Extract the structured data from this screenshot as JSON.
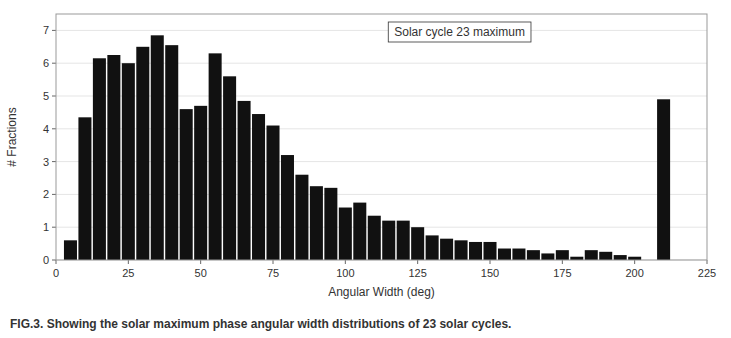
{
  "chart_data": {
    "type": "bar",
    "title": "Solar cycle 23 maximum",
    "x_label": "Angular Width (deg)",
    "y_label": "# Fractions",
    "x": [
      5,
      10,
      15,
      20,
      25,
      30,
      35,
      40,
      45,
      50,
      55,
      60,
      65,
      70,
      75,
      80,
      85,
      90,
      95,
      100,
      105,
      110,
      115,
      120,
      125,
      130,
      135,
      140,
      145,
      150,
      155,
      160,
      165,
      170,
      175,
      180,
      185,
      190,
      195,
      200,
      210
    ],
    "values": [
      0.6,
      4.35,
      6.15,
      6.25,
      6.0,
      6.5,
      6.85,
      6.55,
      4.6,
      4.7,
      6.3,
      5.6,
      4.85,
      4.45,
      4.1,
      3.2,
      2.6,
      2.25,
      2.2,
      1.6,
      1.75,
      1.35,
      1.2,
      1.2,
      1.0,
      0.75,
      0.65,
      0.6,
      0.55,
      0.55,
      0.35,
      0.35,
      0.3,
      0.2,
      0.3,
      0.1,
      0.3,
      0.25,
      0.15,
      0.1,
      4.9
    ],
    "color": "#111111",
    "xlim": [
      0,
      225
    ],
    "ylim": [
      0,
      7.5
    ],
    "xticks": [
      0,
      25,
      50,
      75,
      100,
      125,
      150,
      175,
      200,
      225
    ],
    "yticks": [
      0,
      1,
      2,
      3,
      4,
      5,
      6,
      7
    ],
    "annotations": [
      "FIG.3. Showing the solar maximum phase angular width distributions of 23 solar cycles."
    ]
  }
}
